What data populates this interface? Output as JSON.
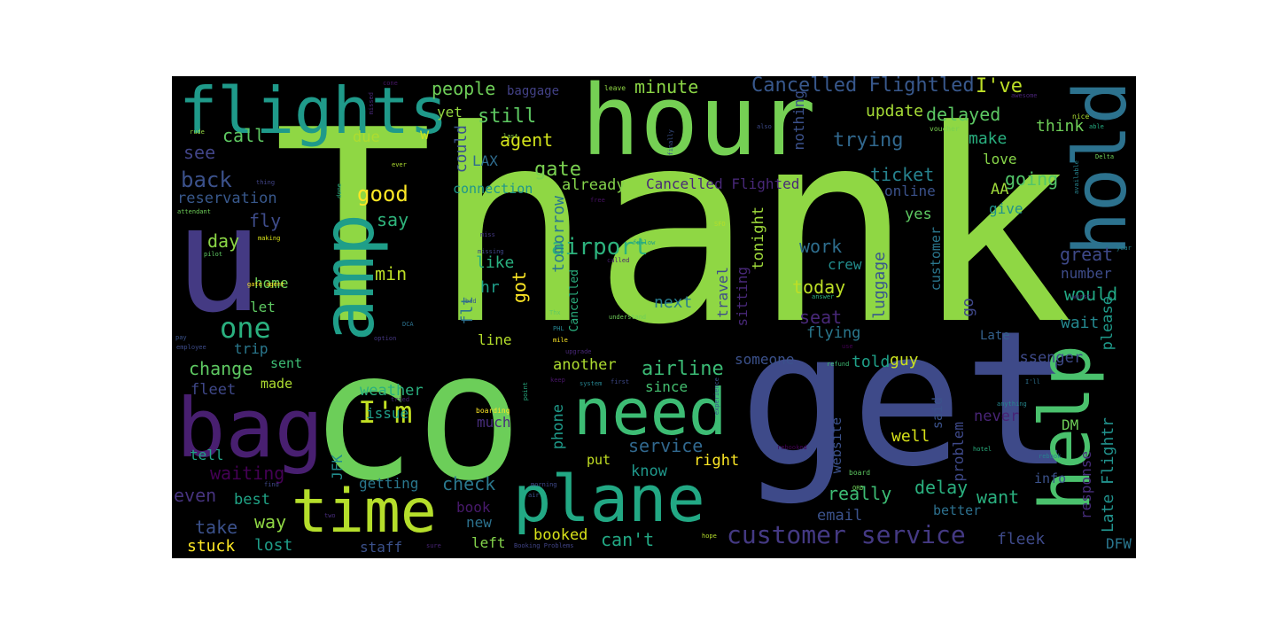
{
  "words": [
    {
      "id": "thank",
      "text": "Thank",
      "color": "#8fd744"
    },
    {
      "id": "co",
      "text": "co",
      "color": "#6cce59"
    },
    {
      "id": "get",
      "text": "get",
      "color": "#3e4a89"
    },
    {
      "id": "hour",
      "text": "hour",
      "color": "#75d054"
    },
    {
      "id": "u",
      "text": "u",
      "color": "#443a83"
    },
    {
      "id": "flights",
      "text": "flights",
      "color": "#1f9a8a"
    },
    {
      "id": "hold",
      "text": "hold",
      "color": "#2c728e"
    },
    {
      "id": "amp",
      "text": "amp",
      "color": "#1f9e89"
    },
    {
      "id": "bag",
      "text": "bag",
      "color": "#481f70"
    },
    {
      "id": "need",
      "text": "need",
      "color": "#3dbc74"
    },
    {
      "id": "time",
      "text": "time",
      "color": "#b5de2b"
    },
    {
      "id": "plane",
      "text": "plane",
      "color": "#22a884"
    },
    {
      "id": "help",
      "text": "help",
      "color": "#4ac16d"
    },
    {
      "id": "customer-service",
      "text": "customer service",
      "color": "#443983"
    },
    {
      "id": "cancelled-flightled",
      "text": "Cancelled Flightled",
      "color": "#38588c"
    },
    {
      "id": "ive",
      "text": "I've",
      "color": "#bddf26"
    },
    {
      "id": "people",
      "text": "people",
      "color": "#6ece58"
    },
    {
      "id": "minute",
      "text": "minute",
      "color": "#8bd646"
    },
    {
      "id": "im",
      "text": "I'm",
      "color": "#c2df23"
    },
    {
      "id": "airport",
      "text": "airport",
      "color": "#2db27d"
    },
    {
      "id": "airline",
      "text": "airline",
      "color": "#3bbb75"
    },
    {
      "id": "one",
      "text": "one",
      "color": "#2ab07f"
    },
    {
      "id": "back",
      "text": "back",
      "color": "#3b518b"
    },
    {
      "id": "good",
      "text": "good",
      "color": "#fde725"
    },
    {
      "id": "delayed",
      "text": "delayed",
      "color": "#5cc863"
    },
    {
      "id": "trying",
      "text": "trying",
      "color": "#31688e"
    },
    {
      "id": "update",
      "text": "update",
      "color": "#a5db36"
    },
    {
      "id": "still",
      "text": "still",
      "color": "#5ec962"
    },
    {
      "id": "agent",
      "text": "agent",
      "color": "#d2e21b"
    },
    {
      "id": "gate",
      "text": "gate",
      "color": "#7ad151"
    },
    {
      "id": "call",
      "text": "call",
      "color": "#5ec962"
    },
    {
      "id": "see",
      "text": "see",
      "color": "#414487"
    },
    {
      "id": "due",
      "text": "due",
      "color": "#addc30"
    },
    {
      "id": "w",
      "text": "w",
      "color": "#c8e020"
    },
    {
      "id": "yet",
      "text": "yet",
      "color": "#95d840"
    },
    {
      "id": "could",
      "text": "could",
      "color": "#3a548c"
    },
    {
      "id": "make",
      "text": "make",
      "color": "#29af7f"
    },
    {
      "id": "think",
      "text": "think",
      "color": "#6ece58"
    },
    {
      "id": "love",
      "text": "love",
      "color": "#87d549"
    },
    {
      "id": "aa",
      "text": "AA",
      "color": "#9fda3a"
    },
    {
      "id": "lax",
      "text": "LAX",
      "color": "#2f6c8e"
    },
    {
      "id": "ticket",
      "text": "ticket",
      "color": "#26828e"
    },
    {
      "id": "going",
      "text": "going",
      "color": "#52c569"
    },
    {
      "id": "already",
      "text": "already",
      "color": "#84d44b"
    },
    {
      "id": "cancelled-flighted",
      "text": "Cancelled Flighted",
      "color": "#482878"
    },
    {
      "id": "reservation",
      "text": "reservation",
      "color": "#38588c"
    },
    {
      "id": "connection",
      "text": "connection",
      "color": "#1f968b"
    },
    {
      "id": "online",
      "text": "online",
      "color": "#3b528b"
    },
    {
      "id": "give",
      "text": "give",
      "color": "#20928c"
    },
    {
      "id": "fly",
      "text": "fly",
      "color": "#3e4c8a"
    },
    {
      "id": "say",
      "text": "say",
      "color": "#2fb47c"
    },
    {
      "id": "day",
      "text": "day",
      "color": "#8bd646"
    },
    {
      "id": "home",
      "text": "home",
      "color": "#6ece58"
    },
    {
      "id": "min",
      "text": "min",
      "color": "#bddf26"
    },
    {
      "id": "like",
      "text": "like",
      "color": "#29af7f"
    },
    {
      "id": "hr",
      "text": "hr",
      "color": "#1f9e89"
    },
    {
      "id": "got",
      "text": "got",
      "color": "#fde725"
    },
    {
      "id": "flt",
      "text": "flt",
      "color": "#2d718e"
    },
    {
      "id": "work",
      "text": "work",
      "color": "#2e6e8e"
    },
    {
      "id": "crew",
      "text": "crew",
      "color": "#228d8d"
    },
    {
      "id": "great",
      "text": "great",
      "color": "#3e4989"
    },
    {
      "id": "number",
      "text": "number",
      "color": "#3e4c8a"
    },
    {
      "id": "today",
      "text": "today",
      "color": "#bddf26"
    },
    {
      "id": "would",
      "text": "would",
      "color": "#22a884"
    },
    {
      "id": "next",
      "text": "next",
      "color": "#287c8e"
    },
    {
      "id": "let",
      "text": "let",
      "color": "#5ec962"
    },
    {
      "id": "seat",
      "text": "seat",
      "color": "#482878"
    },
    {
      "id": "go",
      "text": "go",
      "color": "#3f4788"
    },
    {
      "id": "wait",
      "text": "wait",
      "color": "#24878e"
    },
    {
      "id": "flying",
      "text": "flying",
      "color": "#2a788e"
    },
    {
      "id": "late",
      "text": "Late",
      "color": "#34618d"
    },
    {
      "id": "trip",
      "text": "trip",
      "color": "#2a788e"
    },
    {
      "id": "line",
      "text": "line",
      "color": "#b5de2b"
    },
    {
      "id": "change",
      "text": "change",
      "color": "#5ec962"
    },
    {
      "id": "sent",
      "text": "sent",
      "color": "#3dbc74"
    },
    {
      "id": "told",
      "text": "told",
      "color": "#1fa088"
    },
    {
      "id": "guy",
      "text": "guy",
      "color": "#cae11f"
    },
    {
      "id": "passenger",
      "text": "passenger",
      "color": "#3e4a89"
    },
    {
      "id": "fleet",
      "text": "fleet",
      "color": "#3f4889"
    },
    {
      "id": "made",
      "text": "made",
      "color": "#addc30"
    },
    {
      "id": "another",
      "text": "another",
      "color": "#addc30"
    },
    {
      "id": "since",
      "text": "since",
      "color": "#44bf70"
    },
    {
      "id": "someone",
      "text": "someone",
      "color": "#3b518b"
    },
    {
      "id": "weather",
      "text": "weather",
      "color": "#2ab07f"
    },
    {
      "id": "issue",
      "text": "issue",
      "color": "#1f9e89"
    },
    {
      "id": "much",
      "text": "much",
      "color": "#472d7b"
    },
    {
      "id": "service",
      "text": "service",
      "color": "#31688e"
    },
    {
      "id": "know",
      "text": "know",
      "color": "#1f988b"
    },
    {
      "id": "right",
      "text": "right",
      "color": "#fde725"
    },
    {
      "id": "well",
      "text": "well",
      "color": "#d8e219"
    },
    {
      "id": "never",
      "text": "never",
      "color": "#482475"
    },
    {
      "id": "dm",
      "text": "DM",
      "color": "#6ece58"
    },
    {
      "id": "tell",
      "text": "tell",
      "color": "#20a386"
    },
    {
      "id": "waiting",
      "text": "waiting",
      "color": "#440154"
    },
    {
      "id": "getting",
      "text": "getting",
      "color": "#2a788e"
    },
    {
      "id": "check",
      "text": "check",
      "color": "#2a788e"
    },
    {
      "id": "really",
      "text": "really",
      "color": "#3dbc74"
    },
    {
      "id": "delay",
      "text": "delay",
      "color": "#2ab07f"
    },
    {
      "id": "want",
      "text": "want",
      "color": "#2ab07f"
    },
    {
      "id": "info",
      "text": "info",
      "color": "#3b528b"
    },
    {
      "id": "even",
      "text": "even",
      "color": "#46337e"
    },
    {
      "id": "best",
      "text": "best",
      "color": "#20a386"
    },
    {
      "id": "book",
      "text": "book",
      "color": "#481a6c"
    },
    {
      "id": "new",
      "text": "new",
      "color": "#2c728e"
    },
    {
      "id": "email",
      "text": "email",
      "color": "#3b528b"
    },
    {
      "id": "better",
      "text": "better",
      "color": "#2d708e"
    },
    {
      "id": "take",
      "text": "take",
      "color": "#3b518b"
    },
    {
      "id": "way",
      "text": "way",
      "color": "#8fd744"
    },
    {
      "id": "booked",
      "text": "booked",
      "color": "#d8e219"
    },
    {
      "id": "cant",
      "text": "can't",
      "color": "#22a884"
    },
    {
      "id": "fleek",
      "text": "fleek",
      "color": "#3e4a89"
    },
    {
      "id": "dfw",
      "text": "DFW",
      "color": "#2a768e"
    },
    {
      "id": "stuck",
      "text": "stuck",
      "color": "#fde725"
    },
    {
      "id": "lost",
      "text": "lost",
      "color": "#1f9e89"
    },
    {
      "id": "staff",
      "text": "staff",
      "color": "#3b518b"
    },
    {
      "id": "left",
      "text": "left",
      "color": "#84d44b"
    },
    {
      "id": "put",
      "text": "put",
      "color": "#c2df23"
    },
    {
      "id": "phone",
      "text": "phone",
      "color": "#1f9a8a"
    },
    {
      "id": "tomorrow",
      "text": "tomorrow",
      "color": "#2a778e"
    },
    {
      "id": "luggage",
      "text": "luggage",
      "color": "#38588c"
    },
    {
      "id": "website",
      "text": "website",
      "color": "#3b518b"
    },
    {
      "id": "travel",
      "text": "travel",
      "color": "#3e4c8a"
    },
    {
      "id": "sitting",
      "text": "sitting",
      "color": "#482878"
    },
    {
      "id": "tonight",
      "text": "tonight",
      "color": "#9fda3a"
    },
    {
      "id": "customer",
      "text": "customer",
      "color": "#2a778e"
    },
    {
      "id": "jfk",
      "text": "JFK",
      "color": "#228d8d"
    },
    {
      "id": "said",
      "text": "said",
      "color": "#3b528b"
    },
    {
      "id": "problem",
      "text": "problem",
      "color": "#3e4989"
    },
    {
      "id": "response",
      "text": "response",
      "color": "#472d7b"
    },
    {
      "id": "late-flightr",
      "text": "Late Flightr",
      "color": "#21918c"
    },
    {
      "id": "please",
      "text": "please",
      "color": "#1f9a8a"
    },
    {
      "id": "nothing",
      "text": "nothing",
      "color": "#3b518b"
    },
    {
      "id": "yes",
      "text": "yes",
      "color": "#5ec962"
    },
    {
      "id": "cancelled",
      "text": "Cancelled",
      "color": "#2ab07f"
    },
    {
      "id": "baggage",
      "text": "baggage",
      "color": "#424186"
    },
    {
      "id": "leave",
      "text": "leave",
      "color": "#8fd744"
    },
    {
      "id": "cone",
      "text": "cone",
      "color": "#481668"
    },
    {
      "id": "missed",
      "text": "missed",
      "color": "#482878"
    },
    {
      "id": "awesome",
      "text": "awesome",
      "color": "#482475"
    },
    {
      "id": "nice",
      "text": "nice",
      "color": "#aadc32"
    },
    {
      "id": "able",
      "text": "able",
      "color": "#25ac82"
    },
    {
      "id": "rude",
      "text": "rude",
      "color": "#95d840"
    },
    {
      "id": "last",
      "text": "last",
      "color": "#8bd646"
    },
    {
      "id": "also",
      "text": "also",
      "color": "#3e4a89"
    },
    {
      "id": "voucher",
      "text": "voucher",
      "color": "#7ad151"
    },
    {
      "id": "delta",
      "text": "Delta",
      "color": "#6ece58"
    },
    {
      "id": "ever",
      "text": "ever",
      "color": "#addc30"
    },
    {
      "id": "finally",
      "text": "finally",
      "color": "#3b528b"
    },
    {
      "id": "available",
      "text": "available",
      "color": "#26828e"
    },
    {
      "id": "thing",
      "text": "thing",
      "color": "#414487"
    },
    {
      "id": "attendant",
      "text": "attendant",
      "color": "#6ece58"
    },
    {
      "id": "free",
      "text": "free",
      "color": "#471164"
    },
    {
      "id": "done",
      "text": "done",
      "color": "#27ad81"
    },
    {
      "id": "making",
      "text": "making",
      "color": "#d8e219"
    },
    {
      "id": "miss",
      "text": "miss",
      "color": "#443983"
    },
    {
      "id": "missing",
      "text": "missing",
      "color": "#3f4788"
    },
    {
      "id": "sfo",
      "text": "SFO",
      "color": "#b5de2b"
    },
    {
      "id": "pilot",
      "text": "pilot",
      "color": "#5ec962"
    },
    {
      "id": "called",
      "text": "called",
      "color": "#481f70"
    },
    {
      "id": "follow",
      "text": "follow",
      "color": "#1f9e89"
    },
    {
      "id": "answer",
      "text": "answer",
      "color": "#2ab07f"
    },
    {
      "id": "worst",
      "text": "worst",
      "color": "#482878"
    },
    {
      "id": "year",
      "text": "year",
      "color": "#26828e"
    },
    {
      "id": "gate-agent",
      "text": "gate agent",
      "color": "#fde725"
    },
    {
      "id": "bad",
      "text": "bad",
      "color": "#38588c"
    },
    {
      "id": "thx",
      "text": "Thx",
      "color": "#5ec962"
    },
    {
      "id": "understand",
      "text": "understand",
      "color": "#6ece58"
    },
    {
      "id": "dca",
      "text": "DCA",
      "color": "#2c728e"
    },
    {
      "id": "phl",
      "text": "PHL",
      "color": "#26828e"
    },
    {
      "id": "mile",
      "text": "mile",
      "color": "#fde725"
    },
    {
      "id": "option",
      "text": "option",
      "color": "#453781"
    },
    {
      "id": "pay",
      "text": "pay",
      "color": "#3b528b"
    },
    {
      "id": "upgrade",
      "text": "upgrade",
      "color": "#482878"
    },
    {
      "id": "use",
      "text": "use",
      "color": "#440154"
    },
    {
      "id": "employee",
      "text": "employee",
      "color": "#3e4c8a"
    },
    {
      "id": "refund",
      "text": "refund",
      "color": "#3dbc74"
    },
    {
      "id": "keep",
      "text": "keep",
      "color": "#481668"
    },
    {
      "id": "point",
      "text": "point",
      "color": "#27ad81"
    },
    {
      "id": "system",
      "text": "system",
      "color": "#26828e"
    },
    {
      "id": "first",
      "text": "first",
      "color": "#3e4989"
    },
    {
      "id": "experience",
      "text": "experience",
      "color": "#3b528b"
    },
    {
      "id": "ill",
      "text": "I'll",
      "color": "#2d708e"
    },
    {
      "id": "tried",
      "text": "tried",
      "color": "#482475"
    },
    {
      "id": "boarding",
      "text": "boarding",
      "color": "#fde725"
    },
    {
      "id": "anything",
      "text": "anything",
      "color": "#24878e"
    },
    {
      "id": "long",
      "text": "long",
      "color": "#6ece58"
    },
    {
      "id": "rebooked",
      "text": "rebooked",
      "color": "#440154"
    },
    {
      "id": "hotel",
      "text": "hotel",
      "color": "#2ab07f"
    },
    {
      "id": "rebook",
      "text": "rebook",
      "color": "#26828e"
    },
    {
      "id": "find",
      "text": "find",
      "color": "#3f4889"
    },
    {
      "id": "morning",
      "text": "morning",
      "color": "#3e4989"
    },
    {
      "id": "air",
      "text": "air",
      "color": "#3b528b"
    },
    {
      "id": "board",
      "text": "board",
      "color": "#5ec962"
    },
    {
      "id": "ord",
      "text": "ORD",
      "color": "#6ece58"
    },
    {
      "id": "two",
      "text": "two",
      "color": "#472d7b"
    },
    {
      "id": "sure",
      "text": "sure",
      "color": "#482475"
    },
    {
      "id": "booking-problems",
      "text": "Booking Problems",
      "color": "#414487"
    },
    {
      "id": "hope",
      "text": "hope",
      "color": "#b5de2b"
    }
  ]
}
